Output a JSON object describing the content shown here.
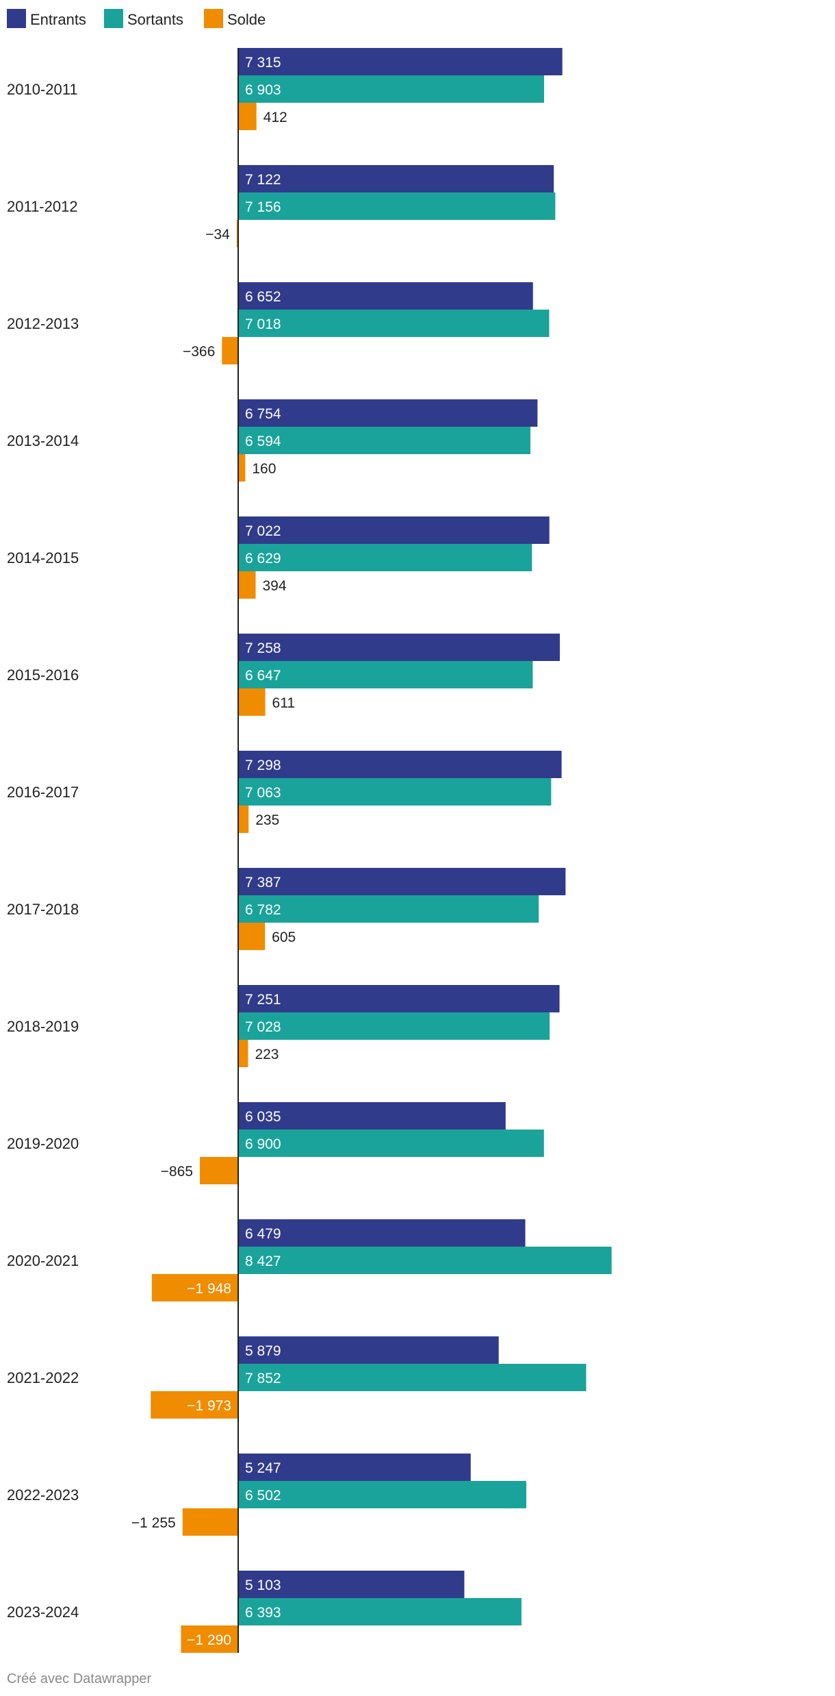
{
  "chart_data": {
    "type": "bar",
    "orientation": "horizontal",
    "title": "",
    "xlabel": "",
    "ylabel": "",
    "legend_position": "top-left",
    "grid": false,
    "xlim": [
      -1973,
      8427
    ],
    "categories": [
      "2010-2011",
      "2011-2012",
      "2012-2013",
      "2013-2014",
      "2014-2015",
      "2015-2016",
      "2016-2017",
      "2017-2018",
      "2018-2019",
      "2019-2020",
      "2020-2021",
      "2021-2022",
      "2022-2023",
      "2023-2024"
    ],
    "series": [
      {
        "name": "Entrants",
        "color": "#313b8c",
        "values": [
          7315,
          7122,
          6652,
          6754,
          7022,
          7258,
          7298,
          7387,
          7251,
          6035,
          6479,
          5879,
          5247,
          5103
        ],
        "labels": [
          "7 315",
          "7 122",
          "6 652",
          "6 754",
          "7 022",
          "7 258",
          "7 298",
          "7 387",
          "7 251",
          "6 035",
          "6 479",
          "5 879",
          "5 247",
          "5 103"
        ]
      },
      {
        "name": "Sortants",
        "color": "#1aa39a",
        "values": [
          6903,
          7156,
          7018,
          6594,
          6629,
          6647,
          7063,
          6782,
          7028,
          6900,
          8427,
          7852,
          6502,
          6393
        ],
        "labels": [
          "6 903",
          "7 156",
          "7 018",
          "6 594",
          "6 629",
          "6 647",
          "7 063",
          "6 782",
          "7 028",
          "6 900",
          "8 427",
          "7 852",
          "6 502",
          "6 393"
        ]
      },
      {
        "name": "Solde",
        "color": "#f08c00",
        "values": [
          412,
          -34,
          -366,
          160,
          394,
          611,
          235,
          605,
          223,
          -865,
          -1948,
          -1973,
          -1255,
          -1290
        ],
        "labels": [
          "412",
          "−34",
          "−366",
          "160",
          "394",
          "611",
          "235",
          "605",
          "223",
          "−865",
          "−1 948",
          "−1 973",
          "−1 255",
          "−1 290"
        ]
      }
    ]
  },
  "footer": {
    "credit": "Créé avec Datawrapper"
  }
}
